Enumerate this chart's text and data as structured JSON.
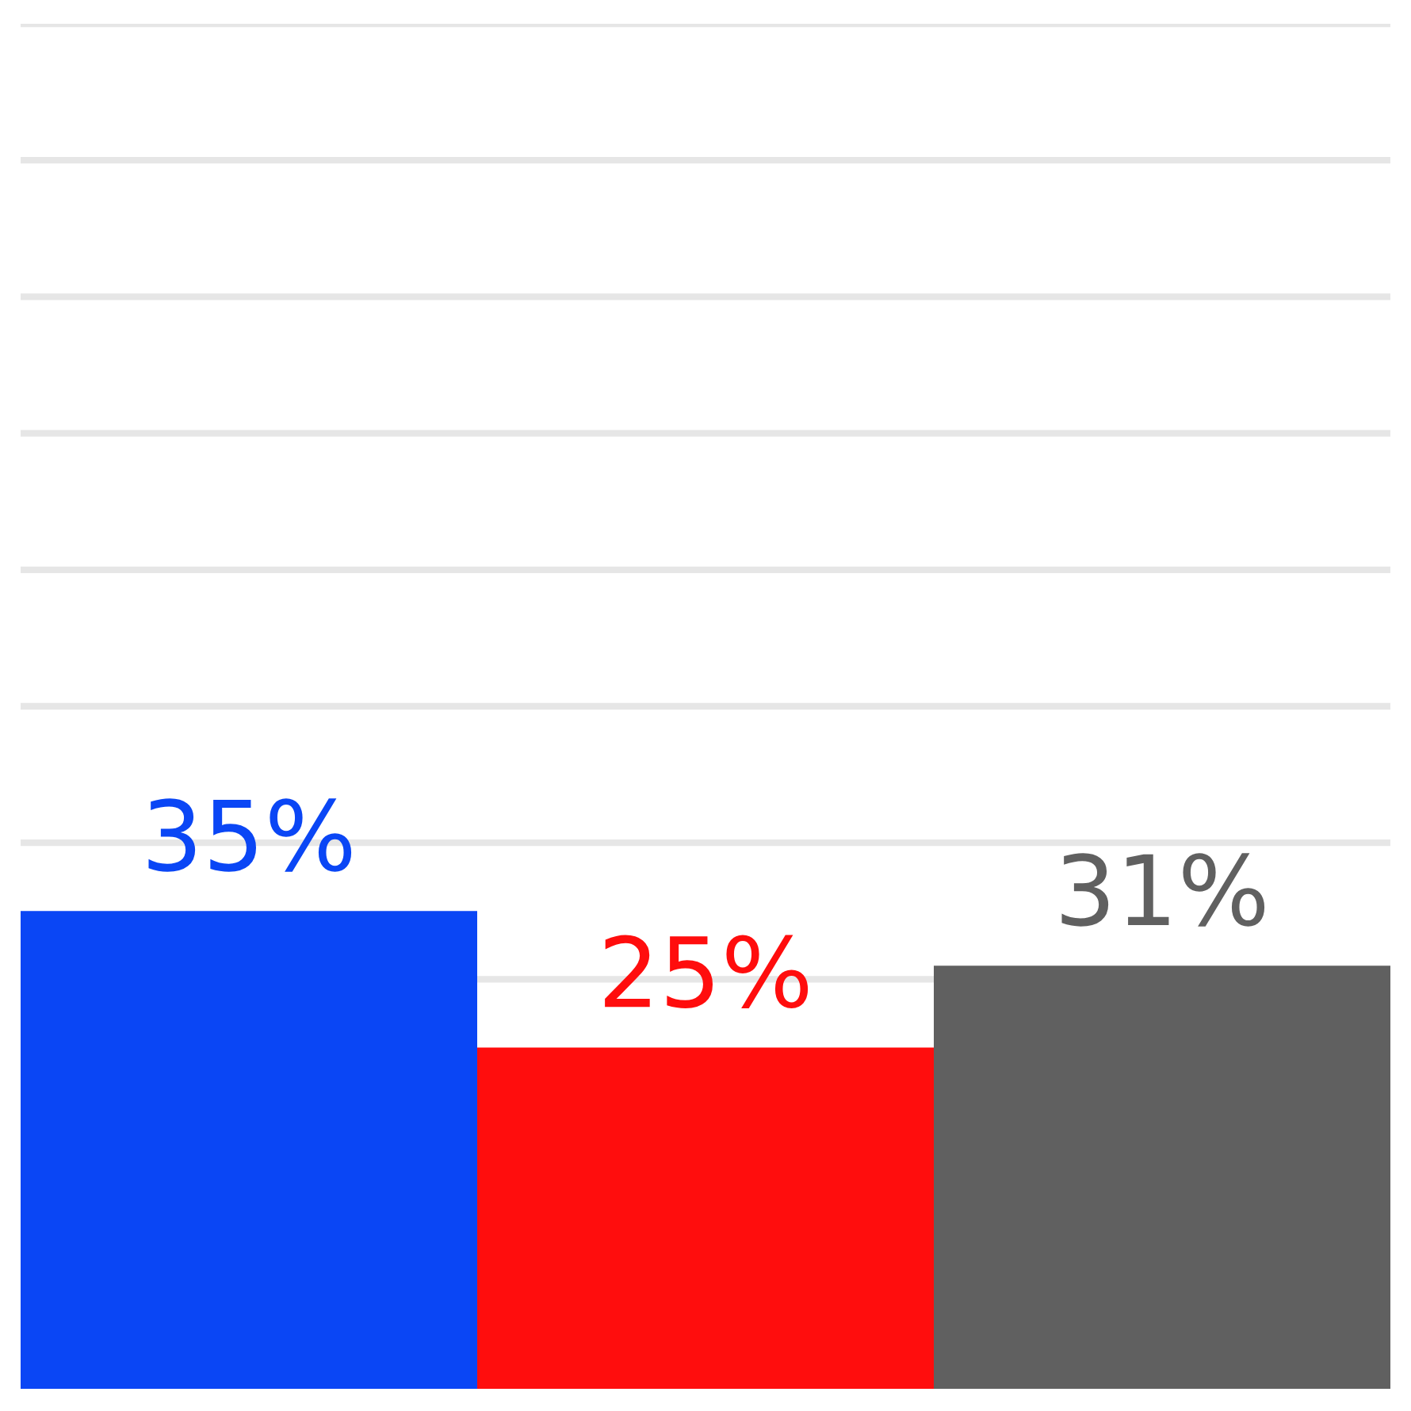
{
  "chart_data": {
    "type": "bar",
    "categories": [
      null,
      null,
      null
    ],
    "values": [
      35,
      25,
      31
    ],
    "colors": [
      "#0a46f5",
      "#ff0d0d",
      "#606060"
    ],
    "value_labels": [
      "35%",
      "25%",
      "31%"
    ],
    "ylim": [
      0,
      100
    ],
    "grid": "y"
  }
}
